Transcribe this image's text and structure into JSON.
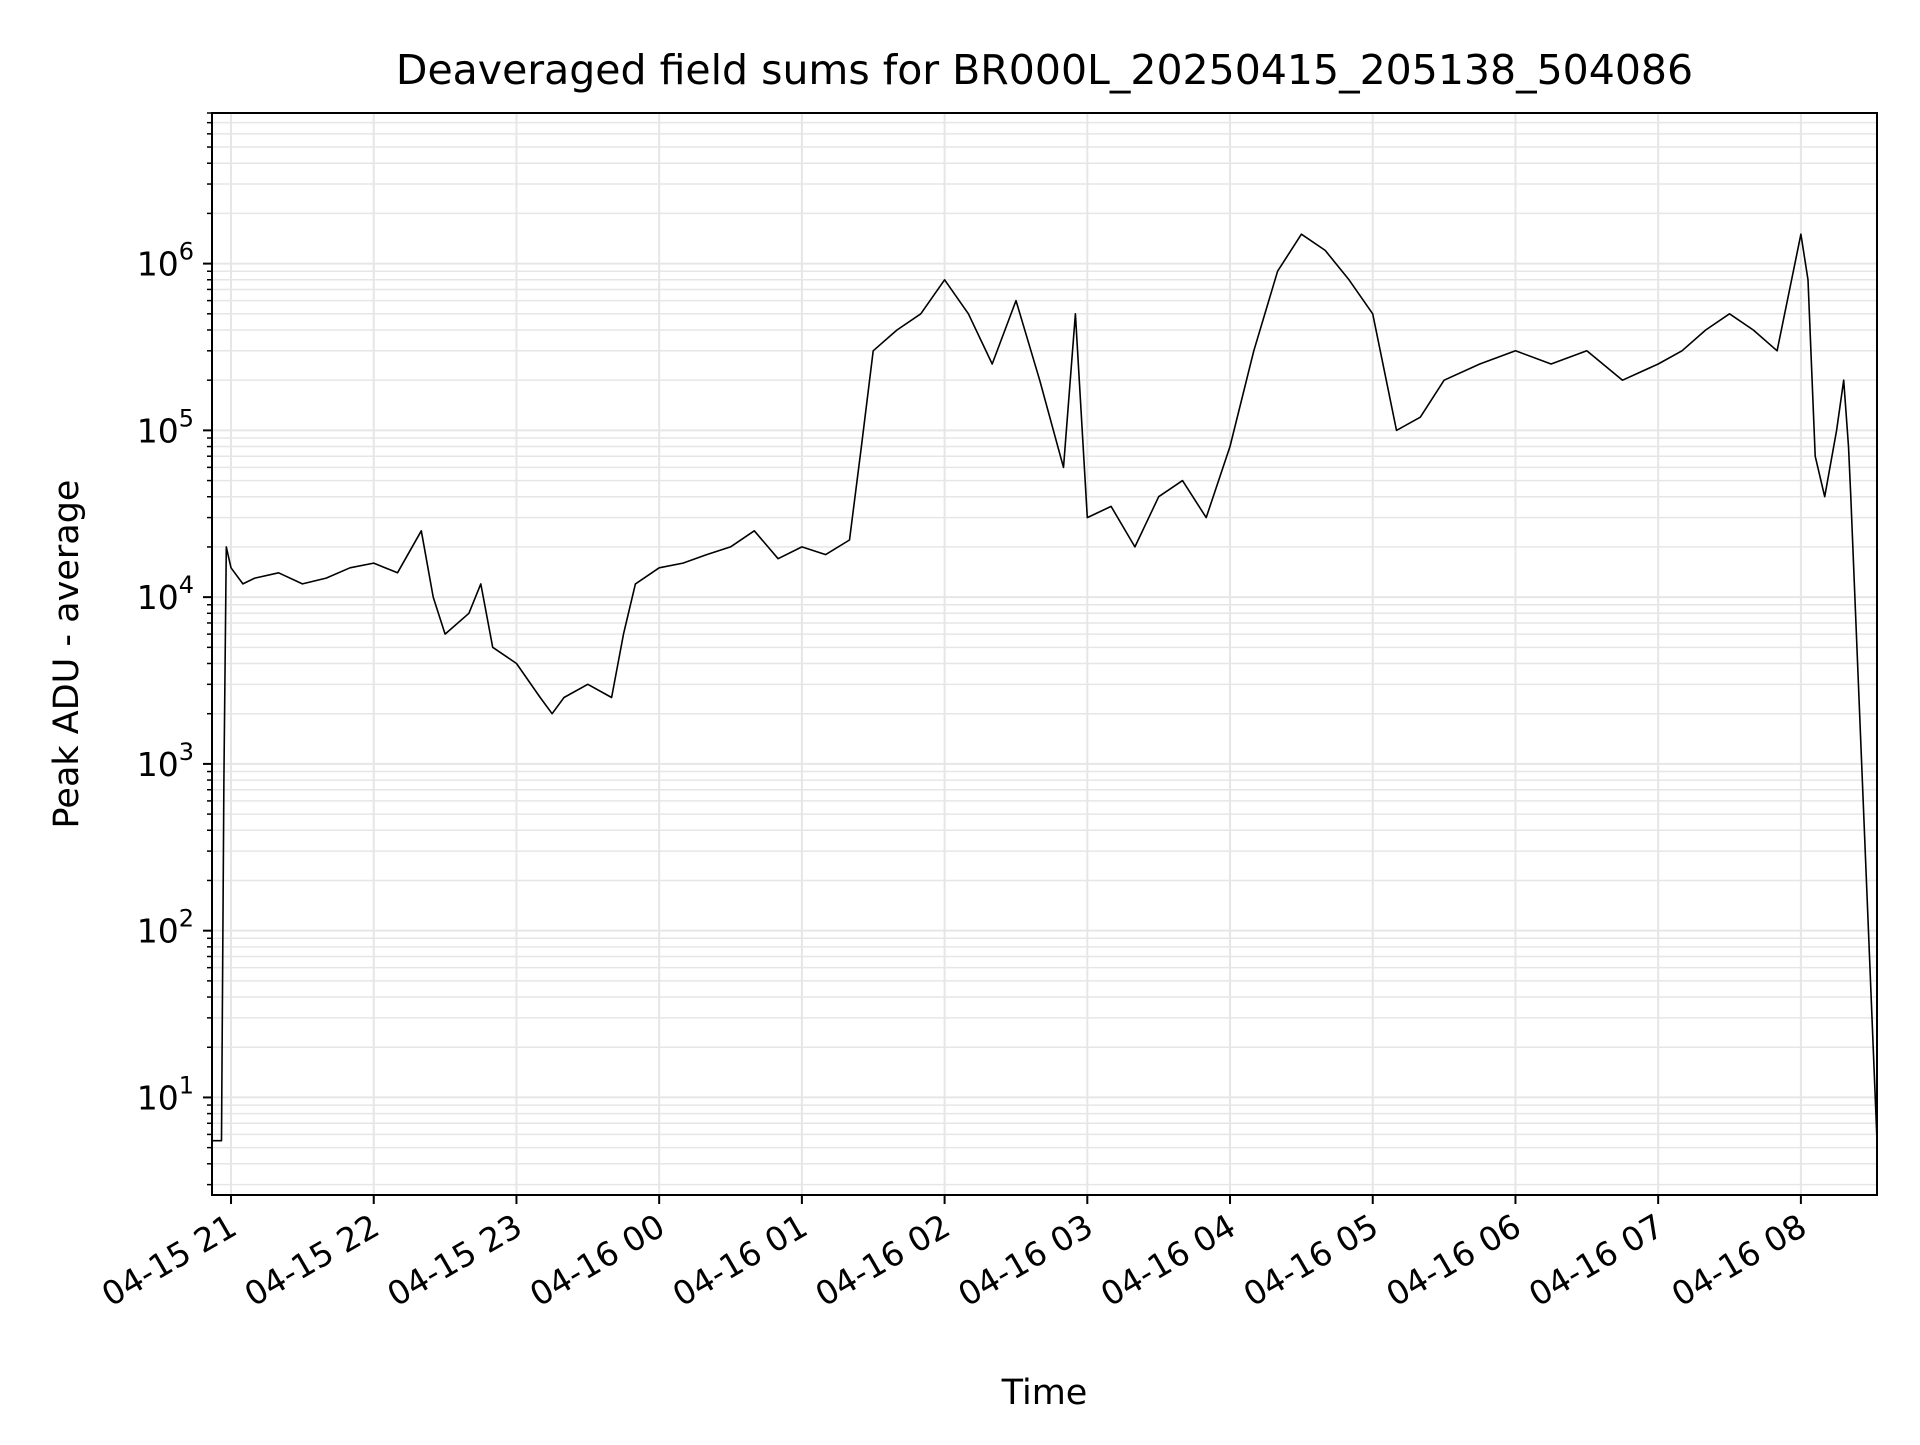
{
  "chart_data": {
    "type": "line",
    "title": "Deaveraged field sums for BR000L_20250415_205138_504086",
    "xlabel": "Time",
    "ylabel": "Peak ADU - average",
    "yscale": "log",
    "grid": true,
    "line_color": "#000000",
    "grid_color": "#e6e6e6",
    "xlim": [
      "2025-04-15 20:52",
      "2025-04-16 08:32"
    ],
    "ylim": [
      2.6,
      8000000
    ],
    "x_ticks": [
      {
        "value": "2025-04-15 21:00",
        "label": "04-15 21"
      },
      {
        "value": "2025-04-15 22:00",
        "label": "04-15 22"
      },
      {
        "value": "2025-04-15 23:00",
        "label": "04-15 23"
      },
      {
        "value": "2025-04-16 00:00",
        "label": "04-16 00"
      },
      {
        "value": "2025-04-16 01:00",
        "label": "04-16 01"
      },
      {
        "value": "2025-04-16 02:00",
        "label": "04-16 02"
      },
      {
        "value": "2025-04-16 03:00",
        "label": "04-16 03"
      },
      {
        "value": "2025-04-16 04:00",
        "label": "04-16 04"
      },
      {
        "value": "2025-04-16 05:00",
        "label": "04-16 05"
      },
      {
        "value": "2025-04-16 06:00",
        "label": "04-16 06"
      },
      {
        "value": "2025-04-16 07:00",
        "label": "04-16 07"
      },
      {
        "value": "2025-04-16 08:00",
        "label": "04-16 08"
      }
    ],
    "y_ticks": [
      {
        "value": 10,
        "base": "10",
        "exp": "1"
      },
      {
        "value": 100,
        "base": "10",
        "exp": "2"
      },
      {
        "value": 1000,
        "base": "10",
        "exp": "3"
      },
      {
        "value": 10000,
        "base": "10",
        "exp": "4"
      },
      {
        "value": 100000,
        "base": "10",
        "exp": "5"
      },
      {
        "value": 1000000,
        "base": "10",
        "exp": "6"
      }
    ],
    "series": [
      {
        "x": [
          "2025-04-15 20:52",
          "2025-04-15 20:56",
          "2025-04-15 20:57",
          "2025-04-15 20:58",
          "2025-04-15 21:00",
          "2025-04-15 21:05",
          "2025-04-15 21:10",
          "2025-04-15 21:20",
          "2025-04-15 21:30",
          "2025-04-15 21:40",
          "2025-04-15 21:50",
          "2025-04-15 22:00",
          "2025-04-15 22:10",
          "2025-04-15 22:20",
          "2025-04-15 22:25",
          "2025-04-15 22:30",
          "2025-04-15 22:40",
          "2025-04-15 22:45",
          "2025-04-15 22:50",
          "2025-04-15 23:00",
          "2025-04-15 23:10",
          "2025-04-15 23:15",
          "2025-04-15 23:20",
          "2025-04-15 23:30",
          "2025-04-15 23:40",
          "2025-04-15 23:45",
          "2025-04-15 23:50",
          "2025-04-16 00:00",
          "2025-04-16 00:10",
          "2025-04-16 00:20",
          "2025-04-16 00:30",
          "2025-04-16 00:40",
          "2025-04-16 00:50",
          "2025-04-16 01:00",
          "2025-04-16 01:10",
          "2025-04-16 01:20",
          "2025-04-16 01:25",
          "2025-04-16 01:30",
          "2025-04-16 01:40",
          "2025-04-16 01:50",
          "2025-04-16 02:00",
          "2025-04-16 02:10",
          "2025-04-16 02:20",
          "2025-04-16 02:30",
          "2025-04-16 02:40",
          "2025-04-16 02:50",
          "2025-04-16 02:55",
          "2025-04-16 03:00",
          "2025-04-16 03:10",
          "2025-04-16 03:20",
          "2025-04-16 03:30",
          "2025-04-16 03:40",
          "2025-04-16 03:50",
          "2025-04-16 04:00",
          "2025-04-16 04:10",
          "2025-04-16 04:20",
          "2025-04-16 04:30",
          "2025-04-16 04:40",
          "2025-04-16 04:50",
          "2025-04-16 05:00",
          "2025-04-16 05:10",
          "2025-04-16 05:20",
          "2025-04-16 05:30",
          "2025-04-16 05:45",
          "2025-04-16 06:00",
          "2025-04-16 06:15",
          "2025-04-16 06:30",
          "2025-04-16 06:45",
          "2025-04-16 07:00",
          "2025-04-16 07:10",
          "2025-04-16 07:20",
          "2025-04-16 07:30",
          "2025-04-16 07:40",
          "2025-04-16 07:50",
          "2025-04-16 08:00",
          "2025-04-16 08:03",
          "2025-04-16 08:06",
          "2025-04-16 08:10",
          "2025-04-16 08:15",
          "2025-04-16 08:18",
          "2025-04-16 08:20",
          "2025-04-16 08:21",
          "2025-04-16 08:32"
        ],
        "y": [
          5.5,
          5.5,
          800,
          20000,
          15000,
          12000,
          13000,
          14000,
          12000,
          13000,
          15000,
          16000,
          14000,
          25000,
          10000,
          6000,
          8000,
          12000,
          5000,
          4000,
          2500,
          2000,
          2500,
          3000,
          2500,
          6000,
          12000,
          15000,
          16000,
          18000,
          20000,
          25000,
          17000,
          20000,
          18000,
          22000,
          80000,
          300000,
          400000,
          500000,
          800000,
          500000,
          250000,
          600000,
          200000,
          60000,
          500000,
          30000,
          35000,
          20000,
          40000,
          50000,
          30000,
          80000,
          300000,
          900000,
          1500000,
          1200000,
          800000,
          500000,
          100000,
          120000,
          200000,
          250000,
          300000,
          250000,
          300000,
          200000,
          250000,
          300000,
          400000,
          500000,
          400000,
          300000,
          1500000,
          800000,
          70000,
          40000,
          100000,
          200000,
          80000,
          40000,
          5.5
        ]
      }
    ]
  }
}
